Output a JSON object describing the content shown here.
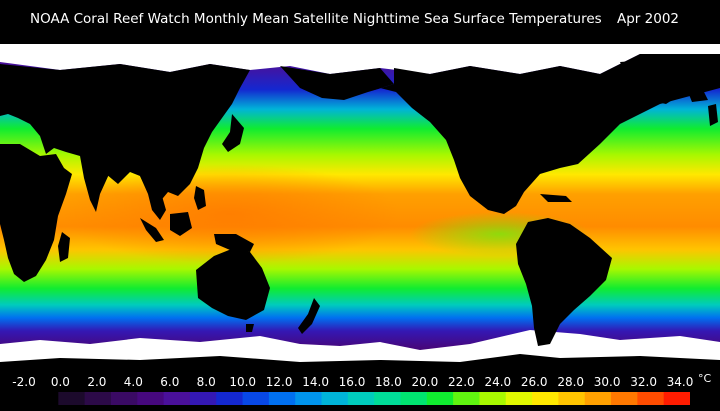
{
  "title": {
    "main": "NOAA Coral Reef Watch Monthly Mean Satellite Nighttime Sea Surface Temperatures",
    "date": "Apr 2002"
  },
  "map": {
    "projection": "equirectangular",
    "central_meridian": "Pacific-centered",
    "land_color": "#000000",
    "ice_color": "#ffffff"
  },
  "legend": {
    "unit": "°C",
    "ticks": [
      "-2.0",
      "0.0",
      "2.0",
      "4.0",
      "6.0",
      "8.0",
      "10.0",
      "12.0",
      "14.0",
      "16.0",
      "18.0",
      "20.0",
      "22.0",
      "24.0",
      "26.0",
      "28.0",
      "30.0",
      "32.0",
      "34.0"
    ],
    "colors": [
      "#000000",
      "#1c0a2c",
      "#2c0a48",
      "#3a0a64",
      "#46087e",
      "#4a109a",
      "#3418b4",
      "#1428d0",
      "#0848e6",
      "#0070f0",
      "#0094ec",
      "#00b4d8",
      "#00ccbc",
      "#00dc98",
      "#00e470",
      "#10ec30",
      "#60f410",
      "#a8f800",
      "#e0f800",
      "#ffe800",
      "#ffc400",
      "#ffa000",
      "#ff7800",
      "#ff4c00",
      "#ff1c00"
    ]
  }
}
